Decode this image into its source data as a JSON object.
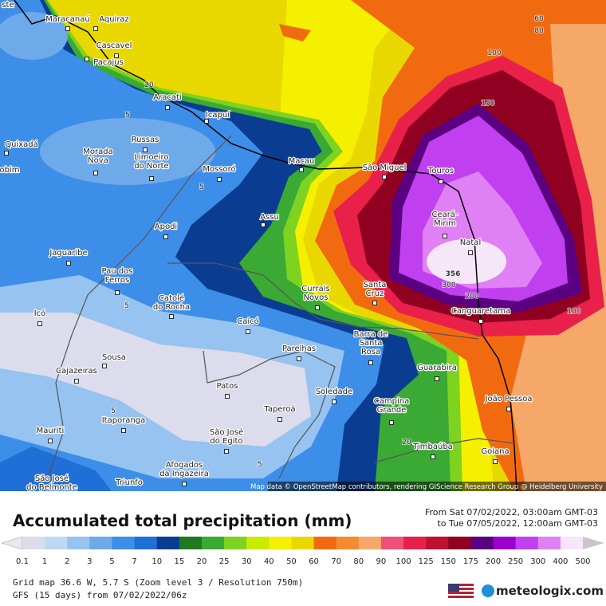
{
  "places": [
    {
      "lines": [
        "ste"
      ]
    },
    {
      "lines": [
        "Maracanaú"
      ]
    },
    {
      "lines": [
        "Aquiraz"
      ]
    },
    {
      "lines": [
        "Cascavel"
      ]
    },
    {
      "lines": [
        "Pacajus"
      ]
    },
    {
      "lines": [
        "Aracati"
      ]
    },
    {
      "lines": [
        "Icapuí"
      ]
    },
    {
      "lines": [
        "Quixadá"
      ]
    },
    {
      "lines": [
        "Russas"
      ]
    },
    {
      "lines": [
        "Morada",
        "Nova"
      ]
    },
    {
      "lines": [
        "Limoeiro",
        "do Norte"
      ]
    },
    {
      "lines": [
        "obim"
      ]
    },
    {
      "lines": [
        "Mossoró"
      ]
    },
    {
      "lines": [
        "Macau"
      ]
    },
    {
      "lines": [
        "São Miguel"
      ]
    },
    {
      "lines": [
        "Touros"
      ]
    },
    {
      "lines": [
        "Assu"
      ]
    },
    {
      "lines": [
        "Apodi"
      ]
    },
    {
      "lines": [
        "Ceará-",
        "Mirim"
      ]
    },
    {
      "lines": [
        "Natal"
      ]
    },
    {
      "lines": [
        "Jaguaribe"
      ]
    },
    {
      "lines": [
        "Pau dos",
        "Ferros"
      ]
    },
    {
      "lines": [
        "Catolé",
        "do Rocha"
      ]
    },
    {
      "lines": [
        "Currais",
        "Novos"
      ]
    },
    {
      "lines": [
        "Santa",
        "Cruz"
      ]
    },
    {
      "lines": [
        "Canguaretama"
      ]
    },
    {
      "lines": [
        "Icó"
      ]
    },
    {
      "lines": [
        "Caicó"
      ]
    },
    {
      "lines": [
        "Barra de",
        "Santa",
        "Rosa"
      ]
    },
    {
      "lines": [
        "Parelhas"
      ]
    },
    {
      "lines": [
        "Sousa"
      ]
    },
    {
      "lines": [
        "Cajazeiras"
      ]
    },
    {
      "lines": [
        "Guarabira"
      ]
    },
    {
      "lines": [
        "Patos"
      ]
    },
    {
      "lines": [
        "Soledade"
      ]
    },
    {
      "lines": [
        "João Pessoa"
      ]
    },
    {
      "lines": [
        "Taperoá"
      ]
    },
    {
      "lines": [
        "Campina",
        "Grande"
      ]
    },
    {
      "lines": [
        "Itaporanga"
      ]
    },
    {
      "lines": [
        "Mauriti"
      ]
    },
    {
      "lines": [
        "São José",
        "do Egito"
      ]
    },
    {
      "lines": [
        "Timbaúba"
      ]
    },
    {
      "lines": [
        "Goiana"
      ]
    },
    {
      "lines": [
        "Afogados",
        "da Ingazeira"
      ]
    },
    {
      "lines": [
        "São José",
        "do Belmonte"
      ]
    },
    {
      "lines": [
        "Triunfo"
      ]
    }
  ],
  "contours": [
    "60",
    "80",
    "100",
    "150",
    "20",
    "5",
    "5",
    "5",
    "5",
    "5",
    "20",
    "100",
    "200",
    "300",
    "356"
  ],
  "attribution": "Map data © OpenStreetMap contributors, rendering GIScience Research Group @ Heidelberg University",
  "footer": {
    "title": "Accumulated total precipitation (mm)",
    "period": [
      "From Sat 07/02/2022, 03:00am GMT-03",
      "to Tue 07/05/2022, 12:00am GMT-03"
    ],
    "grid": "Grid map 36.6 W, 5.7 S (Zoom level 3 / Resolution 750m)",
    "model": "GFS (15 days) from 07/02/2022/06z",
    "brand": "meteologix.com"
  },
  "legend": [
    {
      "label": 0.1,
      "color": "#dcdcec"
    },
    {
      "label": 1,
      "color": "#bcd8f5"
    },
    {
      "label": 2,
      "color": "#96c3f0"
    },
    {
      "label": 3,
      "color": "#6ea9ea"
    },
    {
      "label": 5,
      "color": "#3d8ee8"
    },
    {
      "label": 7,
      "color": "#1f6fd6"
    },
    {
      "label": 10,
      "color": "#0a3d91"
    },
    {
      "label": 15,
      "color": "#1e7a1e"
    },
    {
      "label": 20,
      "color": "#3aaa35"
    },
    {
      "label": 25,
      "color": "#7ed321"
    },
    {
      "label": 30,
      "color": "#c8ec00"
    },
    {
      "label": 40,
      "color": "#f5f000"
    },
    {
      "label": 50,
      "color": "#e8d800"
    },
    {
      "label": 60,
      "color": "#f26a10"
    },
    {
      "label": 70,
      "color": "#f58a30"
    },
    {
      "label": 80,
      "color": "#f5a868"
    },
    {
      "label": 90,
      "color": "#f0507a"
    },
    {
      "label": 100,
      "color": "#e8204a"
    },
    {
      "label": 125,
      "color": "#c01030"
    },
    {
      "label": 150,
      "color": "#900020"
    },
    {
      "label": 175,
      "color": "#5a0080"
    },
    {
      "label": 200,
      "color": "#9a00d0"
    },
    {
      "label": 250,
      "color": "#c040f0"
    },
    {
      "label": 300,
      "color": "#e080f5"
    },
    {
      "label": 400,
      "color": "#f5e6f8"
    },
    {
      "label": 500,
      "color": "#c8c8c8"
    }
  ]
}
